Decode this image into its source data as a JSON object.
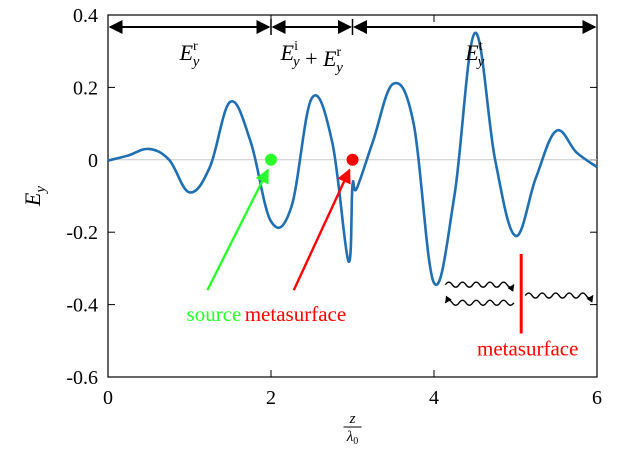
{
  "chart_data": {
    "type": "line",
    "title": "",
    "xlabel": "z/λ0",
    "ylabel": "E_y",
    "xlim": [
      0,
      6
    ],
    "ylim": [
      -0.6,
      0.4
    ],
    "xticks": [
      0,
      2,
      4,
      6
    ],
    "yticks": [
      -0.6,
      -0.4,
      -0.2,
      0,
      0.2,
      0.4
    ],
    "xtick_labels": [
      "0",
      "2",
      "4",
      "6"
    ],
    "ytick_labels": [
      "-0.6",
      "-0.4",
      "-0.2",
      "0",
      "0.2",
      "0.4"
    ],
    "grid": false,
    "legend": "none",
    "series": [
      {
        "name": "",
        "color": "#1f6fb2",
        "x": [
          0.0,
          0.25,
          0.5,
          0.75,
          1.0,
          1.25,
          1.5,
          1.75,
          2.0,
          2.25,
          2.5,
          2.75,
          2.95,
          3.0,
          3.05,
          3.25,
          3.5,
          3.75,
          4.0,
          4.25,
          4.5,
          4.75,
          5.0,
          5.25,
          5.5,
          5.75,
          6.0
        ],
        "y": [
          -0.002,
          0.012,
          0.03,
          0.0,
          -0.09,
          -0.02,
          0.16,
          0.05,
          -0.17,
          -0.13,
          0.17,
          0.05,
          -0.28,
          -0.07,
          -0.08,
          0.05,
          0.21,
          0.1,
          -0.34,
          -0.1,
          0.35,
          0.0,
          -0.21,
          -0.05,
          0.08,
          0.02,
          -0.02
        ]
      }
    ],
    "markers": [
      {
        "name": "source",
        "x": 2.0,
        "y": 0.0,
        "color": "#2aff2a"
      },
      {
        "name": "metasurface",
        "x": 3.0,
        "y": 0.0,
        "color": "#ff0000"
      }
    ],
    "regions": [
      {
        "base": "E",
        "sub": "y",
        "sup": "r",
        "x_from": 0,
        "x_to": 2
      },
      {
        "base": "E",
        "sub": "y",
        "sup": "i",
        "plus": "+",
        "base2": "E",
        "sub2": "y",
        "sup2": "r",
        "x_from": 2,
        "x_to": 3
      },
      {
        "base": "E",
        "sub": "y",
        "sup": "t",
        "x_from": 3,
        "x_to": 6
      }
    ],
    "annotations": [
      {
        "text": "source",
        "color": "#2aff2a",
        "x": 1.3,
        "y": -0.41,
        "arrow_to": [
          2.0,
          0.0
        ]
      },
      {
        "text": "metasurface",
        "color": "#ff0000",
        "x": 2.3,
        "y": -0.41,
        "arrow_to": [
          3.0,
          0.0
        ]
      },
      {
        "text": "metasurface",
        "color": "#ff0000",
        "x": 5.1,
        "y": -0.56
      }
    ]
  }
}
